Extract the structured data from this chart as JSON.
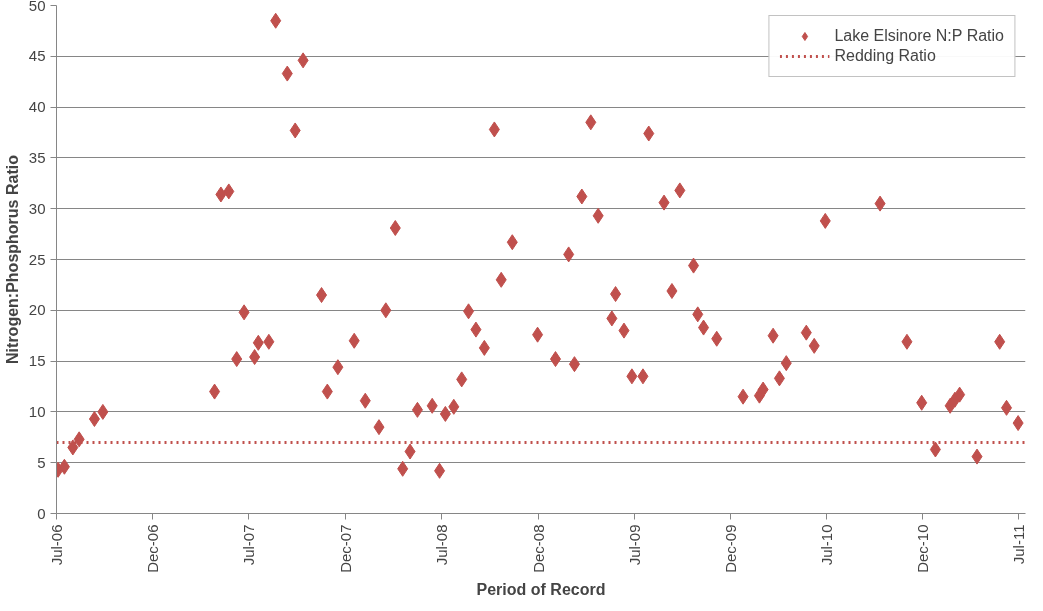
{
  "chart_data": {
    "type": "scatter",
    "xlabel": "Period of Record",
    "ylabel": "Nitrogen:Phosphorus Ratio",
    "series": [
      {
        "name": "Lake Elsinore N:P Ratio",
        "color": "#c0504d",
        "marker": "diamond",
        "x": [
          "2006-07-04",
          "2006-07-16",
          "2006-08-01",
          "2006-08-13",
          "2006-09-11",
          "2006-09-27",
          "2007-04-27",
          "2007-05-09",
          "2007-05-24",
          "2007-06-08",
          "2007-06-22",
          "2007-07-12",
          "2007-07-19",
          "2007-08-08",
          "2007-08-21",
          "2007-09-12",
          "2007-09-27",
          "2007-10-12",
          "2007-11-16",
          "2007-11-27",
          "2007-12-17",
          "2008-01-17",
          "2008-02-07",
          "2008-03-04",
          "2008-03-17",
          "2008-04-04",
          "2008-04-18",
          "2008-05-02",
          "2008-05-16",
          "2008-06-13",
          "2008-06-27",
          "2008-07-08",
          "2008-07-24",
          "2008-08-08",
          "2008-08-21",
          "2008-09-04",
          "2008-09-20",
          "2008-10-09",
          "2008-10-22",
          "2008-11-12",
          "2008-12-30",
          "2009-02-02",
          "2009-02-27",
          "2009-03-10",
          "2009-03-24",
          "2009-04-10",
          "2009-04-24",
          "2009-05-20",
          "2009-05-27",
          "2009-06-12",
          "2009-06-27",
          "2009-07-18",
          "2009-07-29",
          "2009-08-27",
          "2009-09-11",
          "2009-09-26",
          "2009-10-22",
          "2009-10-30",
          "2009-11-10",
          "2009-12-05",
          "2010-01-24",
          "2010-02-24",
          "2010-03-03",
          "2010-03-22",
          "2010-04-03",
          "2010-04-16",
          "2010-05-24",
          "2010-06-08",
          "2010-06-29",
          "2010-10-11",
          "2010-12-01",
          "2010-12-29",
          "2011-01-24",
          "2011-02-21",
          "2011-03-02",
          "2011-03-11",
          "2011-04-13",
          "2011-05-26",
          "2011-06-08",
          "2011-06-30"
        ],
        "values": [
          4.3,
          4.6,
          6.5,
          7.3,
          9.3,
          10.0,
          12.0,
          31.4,
          31.7,
          15.2,
          19.8,
          15.4,
          16.8,
          16.9,
          48.5,
          43.3,
          37.7,
          44.6,
          21.5,
          12.0,
          14.4,
          17.0,
          11.1,
          8.5,
          20.0,
          28.1,
          4.4,
          6.1,
          10.2,
          10.6,
          4.2,
          9.8,
          10.5,
          13.2,
          19.9,
          18.1,
          16.3,
          37.8,
          23.0,
          26.7,
          17.6,
          15.2,
          25.5,
          14.7,
          31.2,
          38.5,
          29.3,
          19.2,
          21.6,
          18.0,
          13.5,
          13.5,
          37.4,
          30.6,
          21.9,
          31.8,
          24.4,
          19.6,
          18.3,
          17.2,
          11.5,
          11.6,
          12.2,
          17.5,
          13.3,
          14.8,
          17.8,
          16.5,
          28.8,
          30.5,
          16.9,
          10.9,
          6.3,
          10.6,
          11.2,
          11.7,
          5.6,
          16.9,
          10.4,
          8.9
        ]
      }
    ],
    "ref_lines": [
      {
        "axis": "y",
        "value": 7,
        "label": "Redding Ratio",
        "color": "#c0504d",
        "line_style": "dotted"
      }
    ],
    "xlim": [
      "2006-07-01",
      "2011-07-14"
    ],
    "xticks": [
      {
        "value": "2006-07-01",
        "label": "Jul-06"
      },
      {
        "value": "2006-12-31",
        "label": "Dec-06"
      },
      {
        "value": "2007-07-01",
        "label": "Jul-07"
      },
      {
        "value": "2007-12-31",
        "label": "Dec-07"
      },
      {
        "value": "2008-07-01",
        "label": "Jul-08"
      },
      {
        "value": "2008-12-31",
        "label": "Dec-08"
      },
      {
        "value": "2009-07-01",
        "label": "Jul-09"
      },
      {
        "value": "2009-12-31",
        "label": "Dec-09"
      },
      {
        "value": "2010-07-01",
        "label": "Jul-10"
      },
      {
        "value": "2010-12-31",
        "label": "Dec-10"
      },
      {
        "value": "2011-07-01",
        "label": "Jul-11"
      }
    ],
    "ylim": [
      0,
      50
    ],
    "yticks": [
      0,
      5,
      10,
      15,
      20,
      25,
      30,
      35,
      40,
      45,
      50
    ],
    "grid": "y",
    "legend": "top right"
  }
}
